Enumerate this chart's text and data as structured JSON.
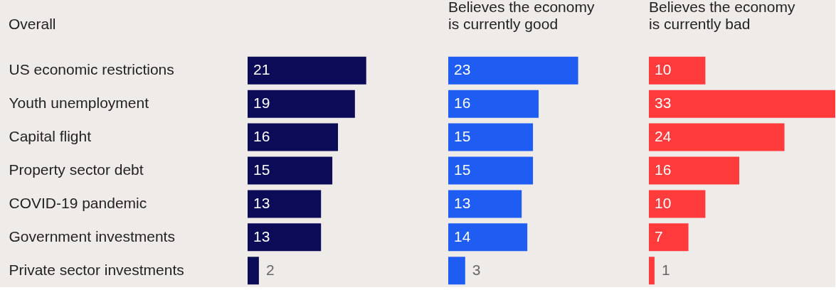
{
  "chart_data": [
    {
      "type": "bar",
      "orientation": "horizontal",
      "title": "Overall",
      "categories": [
        "US economic restrictions",
        "Youth unemployment",
        "Capital flight",
        "Property sector debt",
        "COVID-19 pandemic",
        "Government investments",
        "Private sector investments"
      ],
      "values": [
        21,
        19,
        16,
        15,
        13,
        13,
        2
      ],
      "color": "#0b0b57",
      "data_labels": true,
      "tick_labels": "y",
      "grid": false
    },
    {
      "type": "bar",
      "orientation": "horizontal",
      "title": "Believes the economy is currently good",
      "values": [
        23,
        16,
        15,
        15,
        13,
        14,
        3
      ],
      "color": "#1f5cf2",
      "data_labels": true,
      "grid": false
    },
    {
      "type": "bar",
      "orientation": "horizontal",
      "title": "Believes the economy is currently bad",
      "values": [
        10,
        33,
        24,
        16,
        10,
        7,
        1
      ],
      "color": "#ff3b3b",
      "data_labels": true,
      "grid": false
    }
  ]
}
